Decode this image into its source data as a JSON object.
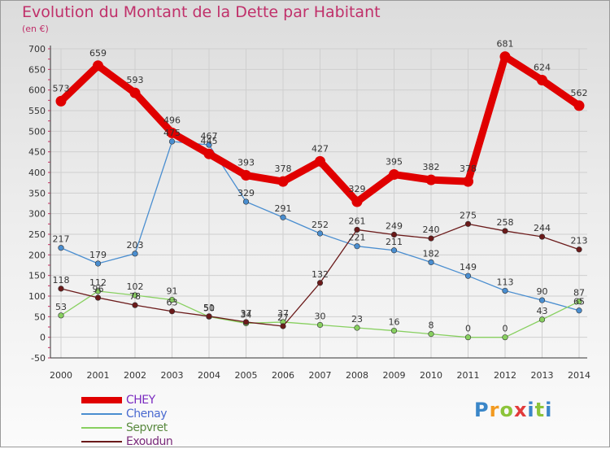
{
  "header": {
    "title": "Evolution du Montant de la Dette par Habitant",
    "unit": "(en €)"
  },
  "logo": {
    "letters": [
      "P",
      "r",
      "o",
      "x",
      "i",
      "t",
      "i"
    ],
    "colors": [
      "#3a86c8",
      "#f29a20",
      "#8cc43a",
      "#e23b3b",
      "#3a86c8",
      "#8cc43a",
      "#3a86c8"
    ]
  },
  "chart_data": {
    "type": "line",
    "title": "Evolution du Montant de la Dette par Habitant",
    "ylabel": "(en €)",
    "xlabel": "",
    "categories": [
      "2000",
      "2001",
      "2002",
      "2003",
      "2004",
      "2005",
      "2006",
      "2007",
      "2008",
      "2009",
      "2010",
      "2011",
      "2012",
      "2013",
      "2014"
    ],
    "ylim": [
      -50,
      700
    ],
    "yticks": [
      -50,
      0,
      50,
      100,
      150,
      200,
      250,
      300,
      350,
      400,
      450,
      500,
      550,
      600,
      650,
      700
    ],
    "grid": true,
    "legend_position": "bottom-left",
    "series": [
      {
        "name": "CHEY",
        "color": "#e00000",
        "values": [
          573,
          659,
          593,
          496,
          445,
          393,
          378,
          427,
          329,
          395,
          382,
          378,
          681,
          624,
          562
        ]
      },
      {
        "name": "Chenay",
        "color": "#4a8ed0",
        "values": [
          217,
          179,
          203,
          475,
          467,
          329,
          291,
          252,
          221,
          211,
          182,
          149,
          113,
          90,
          65
        ]
      },
      {
        "name": "Sepvret",
        "color": "#88d060",
        "values": [
          53,
          112,
          102,
          91,
          50,
          34,
          37,
          30,
          23,
          16,
          8,
          0,
          0,
          43,
          87
        ]
      },
      {
        "name": "Exoudun",
        "color": "#6b1a1a",
        "values": [
          118,
          96,
          78,
          63,
          51,
          37,
          27,
          132,
          261,
          249,
          240,
          275,
          258,
          244,
          213
        ]
      }
    ]
  }
}
